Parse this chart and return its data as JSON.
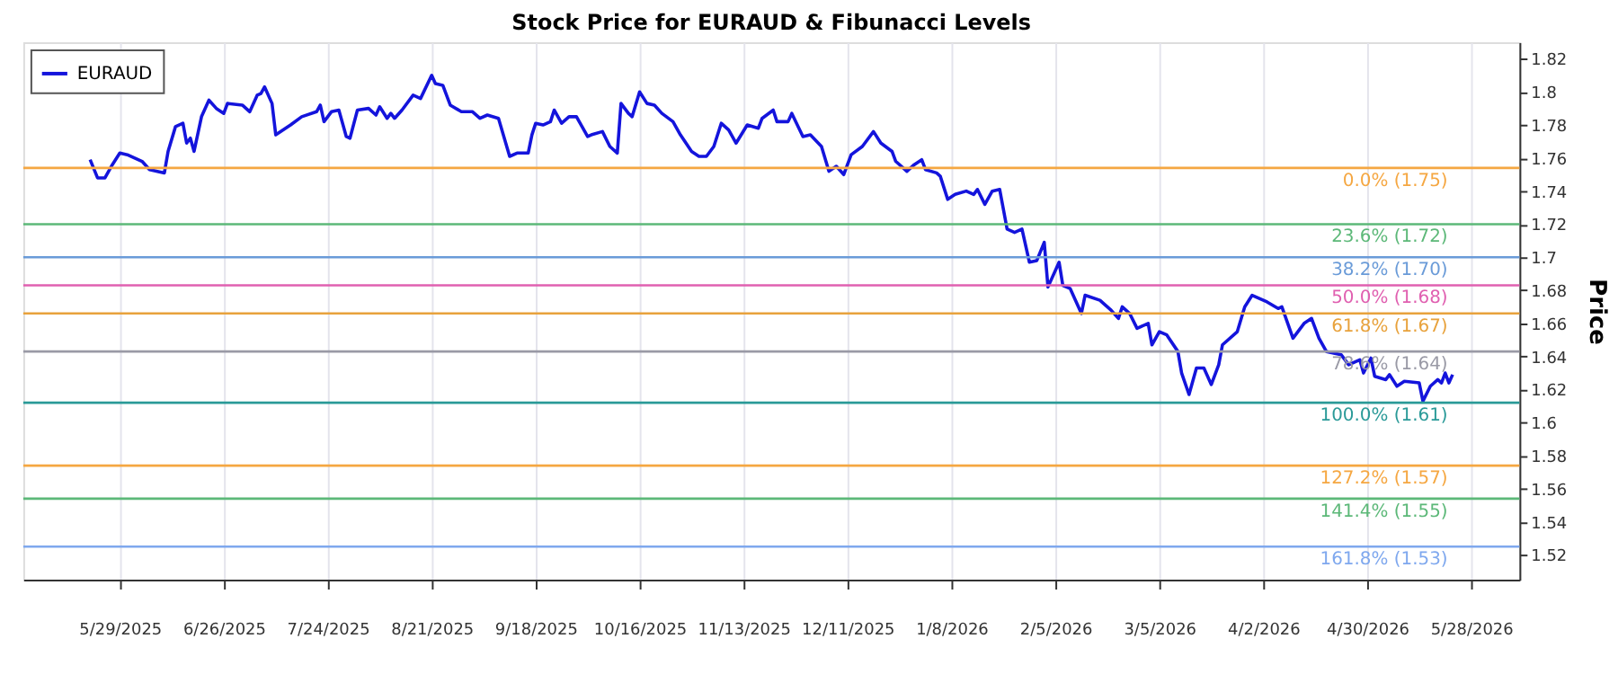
{
  "chart_data": {
    "type": "line",
    "title": "Stock Price for EURAUD & Fibunacci Levels",
    "ylabel": "Price",
    "x": [
      "2025-05-21",
      "2025-05-23",
      "2025-05-25",
      "2025-05-27",
      "2025-05-29",
      "2025-05-31",
      "2025-06-04",
      "2025-06-06",
      "2025-06-10",
      "2025-06-11",
      "2025-06-13",
      "2025-06-15",
      "2025-06-16",
      "2025-06-17",
      "2025-06-18",
      "2025-06-20",
      "2025-06-22",
      "2025-06-24",
      "2025-06-26",
      "2025-06-27",
      "2025-07-01",
      "2025-07-03",
      "2025-07-05",
      "2025-07-06",
      "2025-07-07",
      "2025-07-09",
      "2025-07-10",
      "2025-07-14",
      "2025-07-17",
      "2025-07-21",
      "2025-07-22",
      "2025-07-23",
      "2025-07-25",
      "2025-07-27",
      "2025-07-29",
      "2025-07-30",
      "2025-08-01",
      "2025-08-04",
      "2025-08-06",
      "2025-08-07",
      "2025-08-09",
      "2025-08-10",
      "2025-08-11",
      "2025-08-13",
      "2025-08-16",
      "2025-08-18",
      "2025-08-21",
      "2025-08-22",
      "2025-08-24",
      "2025-08-26",
      "2025-08-29",
      "2025-09-01",
      "2025-09-03",
      "2025-09-05",
      "2025-09-08",
      "2025-09-11",
      "2025-09-13",
      "2025-09-16",
      "2025-09-17",
      "2025-09-18",
      "2025-09-20",
      "2025-09-22",
      "2025-09-23",
      "2025-09-25",
      "2025-09-27",
      "2025-09-29",
      "2025-10-02",
      "2025-10-03",
      "2025-10-06",
      "2025-10-08",
      "2025-10-10",
      "2025-10-11",
      "2025-10-13",
      "2025-10-14",
      "2025-10-16",
      "2025-10-18",
      "2025-10-20",
      "2025-10-22",
      "2025-10-25",
      "2025-10-27",
      "2025-10-30",
      "2025-11-01",
      "2025-11-03",
      "2025-11-05",
      "2025-11-07",
      "2025-11-09",
      "2025-11-11",
      "2025-11-14",
      "2025-11-17",
      "2025-11-18",
      "2025-11-21",
      "2025-11-22",
      "2025-11-25",
      "2025-11-26",
      "2025-11-29",
      "2025-12-01",
      "2025-12-04",
      "2025-12-06",
      "2025-12-08",
      "2025-12-10",
      "2025-12-12",
      "2025-12-15",
      "2025-12-18",
      "2025-12-20",
      "2025-12-23",
      "2025-12-24",
      "2025-12-27",
      "2025-12-29",
      "2025-12-31",
      "2026-01-01",
      "2026-01-04",
      "2026-01-05",
      "2026-01-07",
      "2026-01-09",
      "2026-01-12",
      "2026-01-14",
      "2026-01-15",
      "2026-01-17",
      "2026-01-19",
      "2026-01-21",
      "2026-01-23",
      "2026-01-25",
      "2026-01-27",
      "2026-01-29",
      "2026-01-31",
      "2026-02-02",
      "2026-02-03",
      "2026-02-06",
      "2026-02-07",
      "2026-02-09",
      "2026-02-12",
      "2026-02-13",
      "2026-02-17",
      "2026-02-20",
      "2026-02-22",
      "2026-02-23",
      "2026-02-25",
      "2026-02-27",
      "2026-03-02",
      "2026-03-03",
      "2026-03-05",
      "2026-03-07",
      "2026-03-10",
      "2026-03-11",
      "2026-03-13",
      "2026-03-15",
      "2026-03-17",
      "2026-03-19",
      "2026-03-21",
      "2026-03-22",
      "2026-03-26",
      "2026-03-28",
      "2026-03-30",
      "2026-04-03",
      "2026-04-06",
      "2026-04-07",
      "2026-04-10",
      "2026-04-13",
      "2026-04-15",
      "2026-04-17",
      "2026-04-19",
      "2026-04-23",
      "2026-04-25",
      "2026-04-28",
      "2026-04-29",
      "2026-05-01",
      "2026-05-02",
      "2026-05-05",
      "2026-05-06",
      "2026-05-08",
      "2026-05-10",
      "2026-05-14",
      "2026-05-15",
      "2026-05-17",
      "2026-05-19",
      "2026-05-20",
      "2026-05-21",
      "2026-05-22",
      "2026-05-23"
    ],
    "series": [
      {
        "name": "EURAUD",
        "color": "#1414dc",
        "values": [
          1.759,
          1.748,
          1.748,
          1.756,
          1.763,
          1.762,
          1.758,
          1.753,
          1.751,
          1.764,
          1.779,
          1.781,
          1.769,
          1.772,
          1.764,
          1.785,
          1.795,
          1.79,
          1.787,
          1.793,
          1.792,
          1.788,
          1.798,
          1.799,
          1.803,
          1.793,
          1.774,
          1.78,
          1.785,
          1.788,
          1.792,
          1.782,
          1.788,
          1.789,
          1.773,
          1.772,
          1.789,
          1.79,
          1.786,
          1.791,
          1.784,
          1.787,
          1.784,
          1.789,
          1.798,
          1.796,
          1.81,
          1.805,
          1.804,
          1.792,
          1.788,
          1.788,
          1.784,
          1.786,
          1.784,
          1.761,
          1.763,
          1.763,
          1.774,
          1.781,
          1.78,
          1.782,
          1.789,
          1.781,
          1.785,
          1.785,
          1.773,
          1.774,
          1.776,
          1.767,
          1.763,
          1.793,
          1.787,
          1.785,
          1.8,
          1.793,
          1.792,
          1.787,
          1.782,
          1.774,
          1.764,
          1.761,
          1.761,
          1.767,
          1.781,
          1.777,
          1.769,
          1.78,
          1.778,
          1.784,
          1.789,
          1.782,
          1.782,
          1.787,
          1.773,
          1.774,
          1.767,
          1.752,
          1.755,
          1.75,
          1.762,
          1.767,
          1.776,
          1.769,
          1.764,
          1.758,
          1.752,
          1.756,
          1.759,
          1.753,
          1.751,
          1.749,
          1.735,
          1.738,
          1.74,
          1.738,
          1.741,
          1.732,
          1.74,
          1.741,
          1.717,
          1.715,
          1.717,
          1.697,
          1.698,
          1.709,
          1.682,
          1.697,
          1.683,
          1.681,
          1.666,
          1.677,
          1.674,
          1.668,
          1.663,
          1.67,
          1.666,
          1.657,
          1.66,
          1.647,
          1.655,
          1.653,
          1.643,
          1.63,
          1.617,
          1.633,
          1.633,
          1.623,
          1.635,
          1.647,
          1.655,
          1.67,
          1.677,
          1.673,
          1.669,
          1.67,
          1.651,
          1.66,
          1.663,
          1.651,
          1.643,
          1.641,
          1.635,
          1.638,
          1.63,
          1.639,
          1.628,
          1.626,
          1.629,
          1.622,
          1.625,
          1.624,
          1.613,
          1.622,
          1.626,
          1.624,
          1.63,
          1.624,
          1.629
        ]
      }
    ],
    "xlim": [
      "2025-05-03",
      "2026-06-10"
    ],
    "xticks": [
      {
        "value": "2025-05-29",
        "label": "5/29/2025"
      },
      {
        "value": "2025-06-26",
        "label": "6/26/2025"
      },
      {
        "value": "2025-07-24",
        "label": "7/24/2025"
      },
      {
        "value": "2025-08-21",
        "label": "8/21/2025"
      },
      {
        "value": "2025-09-18",
        "label": "9/18/2025"
      },
      {
        "value": "2025-10-16",
        "label": "10/16/2025"
      },
      {
        "value": "2025-11-13",
        "label": "11/13/2025"
      },
      {
        "value": "2025-12-11",
        "label": "12/11/2025"
      },
      {
        "value": "2026-01-08",
        "label": "1/8/2026"
      },
      {
        "value": "2026-02-05",
        "label": "2/5/2026"
      },
      {
        "value": "2026-03-05",
        "label": "3/5/2026"
      },
      {
        "value": "2026-04-02",
        "label": "4/2/2026"
      },
      {
        "value": "2026-04-30",
        "label": "4/30/2026"
      },
      {
        "value": "2026-05-28",
        "label": "5/28/2026"
      }
    ],
    "ylim": [
      1.505,
      1.83
    ],
    "yticks": [
      1.52,
      1.54,
      1.56,
      1.58,
      1.6,
      1.62,
      1.64,
      1.66,
      1.68,
      1.7,
      1.72,
      1.74,
      1.76,
      1.78,
      1.8,
      1.82
    ],
    "ref_lines": [
      {
        "axis": "y",
        "value": 1.754,
        "label": "0.0% (1.75)",
        "color": "#f5a742"
      },
      {
        "axis": "y",
        "value": 1.72,
        "label": "23.6% (1.72)",
        "color": "#5cb878"
      },
      {
        "axis": "y",
        "value": 1.7,
        "label": "38.2% (1.70)",
        "color": "#6a9bd8"
      },
      {
        "axis": "y",
        "value": 1.683,
        "label": "50.0% (1.68)",
        "color": "#e060b0"
      },
      {
        "axis": "y",
        "value": 1.666,
        "label": "61.8% (1.67)",
        "color": "#e8a23c"
      },
      {
        "axis": "y",
        "value": 1.643,
        "label": "78.6% (1.64)",
        "color": "#9a9aa6"
      },
      {
        "axis": "y",
        "value": 1.612,
        "label": "100.0% (1.61)",
        "color": "#2a9a98"
      },
      {
        "axis": "y",
        "value": 1.574,
        "label": "127.2% (1.57)",
        "color": "#f5a742"
      },
      {
        "axis": "y",
        "value": 1.554,
        "label": "141.4% (1.55)",
        "color": "#5cb878"
      },
      {
        "axis": "y",
        "value": 1.525,
        "label": "161.8% (1.53)",
        "color": "#7fa8ee"
      }
    ],
    "grid": "x",
    "legend": "top left",
    "marker": "none",
    "line_style": "solid"
  }
}
